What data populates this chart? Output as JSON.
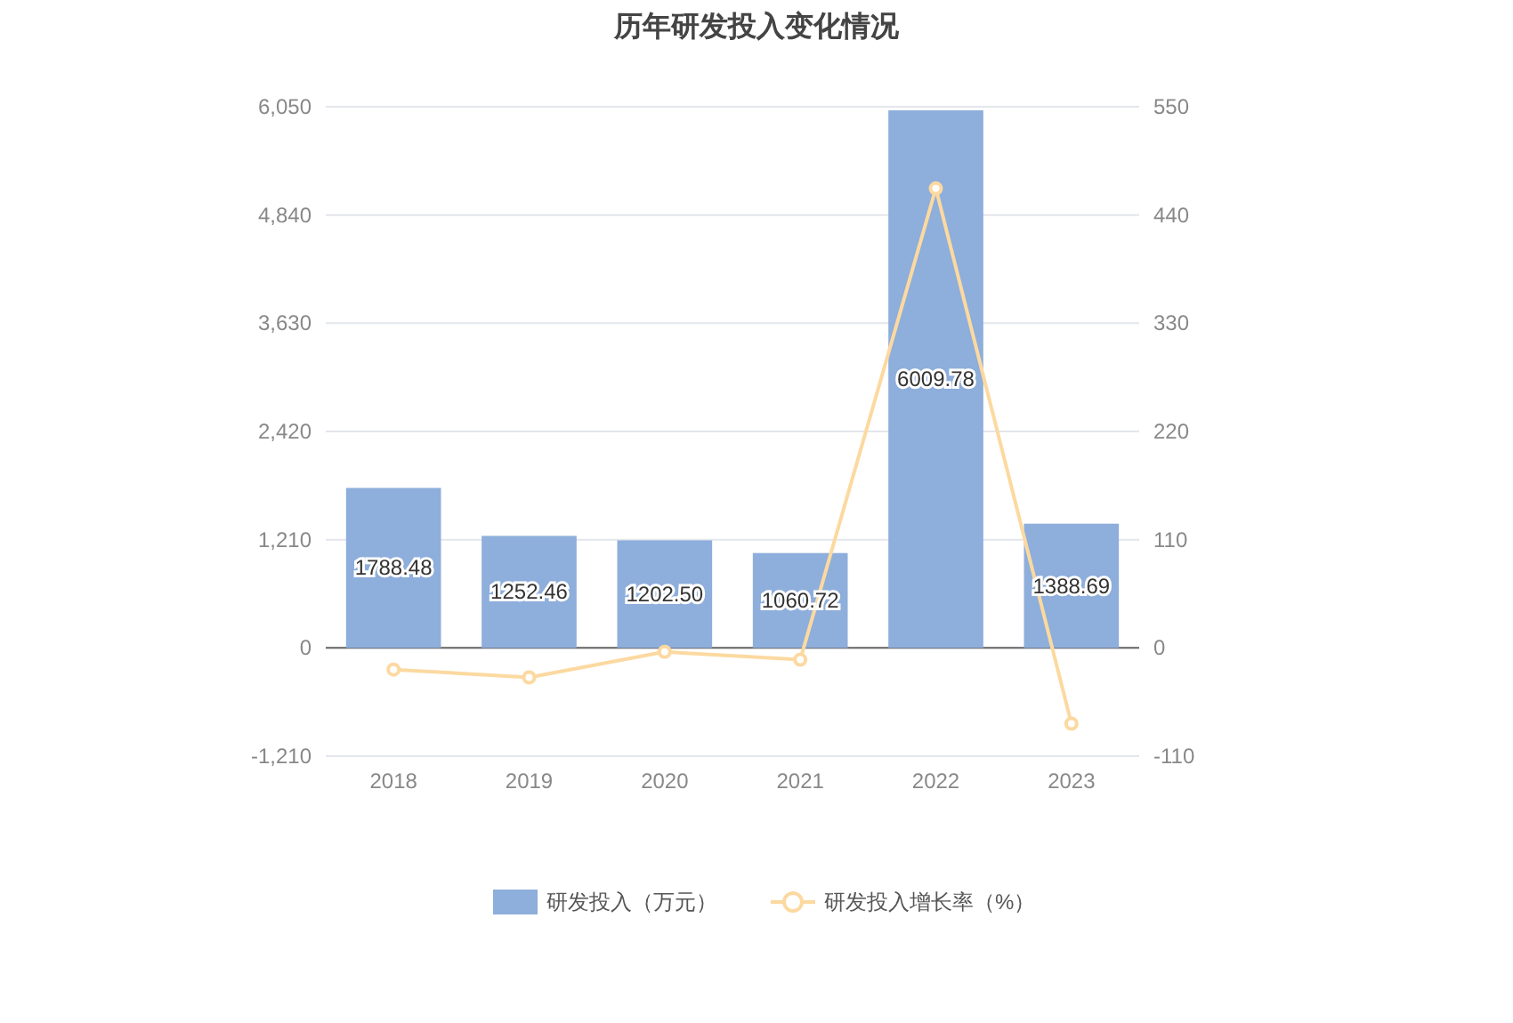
{
  "chart_data": {
    "type": "bar",
    "title": "历年研发投入变化情况",
    "categories": [
      "2018",
      "2019",
      "2020",
      "2021",
      "2022",
      "2023"
    ],
    "series": [
      {
        "name": "研发投入（万元）",
        "color": "#8eaedb",
        "values": [
          1788.48,
          1252.46,
          1202.5,
          1060.72,
          6009.78,
          1388.69
        ],
        "value_labels": [
          "1788.48",
          "1252.46",
          "1202.50",
          "1060.72",
          "6009.78",
          "1388.69"
        ]
      },
      {
        "name": "研发投入增长率（%）",
        "type": "line",
        "axis": "y2",
        "color": "#fcd9a0",
        "marker": "circle",
        "values": [
          -22,
          -30,
          -4,
          -12,
          467,
          -77
        ]
      }
    ],
    "ylim": [
      -1210,
      6050
    ],
    "yticks": [
      {
        "value": -1210,
        "label": "-1,210"
      },
      0,
      {
        "value": 1210,
        "label": "1,210"
      },
      {
        "value": 2420,
        "label": "2,420"
      },
      {
        "value": 3630,
        "label": "3,630"
      },
      {
        "value": 4840,
        "label": "4,840"
      },
      {
        "value": 6050,
        "label": "6,050"
      }
    ],
    "y2lim": [
      -110,
      550
    ],
    "y2ticks": [
      -110,
      0,
      110,
      220,
      330,
      440,
      550
    ],
    "grid": "y",
    "legend": "bottom"
  }
}
